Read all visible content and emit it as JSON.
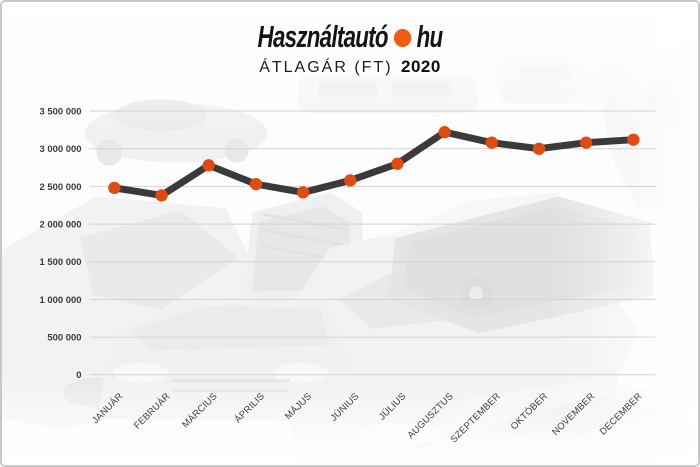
{
  "header": {
    "logo": {
      "part1": "Használtautó",
      "part2": "hu",
      "dot_color": "#f15a10"
    },
    "subtitle": {
      "label": "ÁTLAGÁR (FT)",
      "year": "2020"
    }
  },
  "colors": {
    "frame_border": "#c7c7c7",
    "grid_line": "#d2d2d2",
    "axis_text": "#3a3a3a"
  },
  "chart_data": {
    "type": "line",
    "title": "ÁTLAGÁR (FT) 2020",
    "categories": [
      "JANUÁR",
      "FEBRUÁR",
      "MÁRCIUS",
      "ÁPRILIS",
      "MÁJUS",
      "JÚNIUS",
      "JÚLIUS",
      "AUGUSZTUS",
      "SZEPTEMBER",
      "OKTÓBER",
      "NOVEMBER",
      "DECEMBER"
    ],
    "values": [
      2480000,
      2380000,
      2780000,
      2530000,
      2420000,
      2580000,
      2800000,
      3220000,
      3080000,
      3000000,
      3080000,
      3120000
    ],
    "xlabel": "",
    "ylabel": "",
    "ylim": [
      0,
      3500000
    ],
    "y_tick_step": 500000,
    "y_tick_labels": [
      "0",
      "500 000",
      "1 000 000",
      "1 500 000",
      "2 000 000",
      "2 500 000",
      "3 000 000",
      "3 500 000"
    ],
    "grid": true,
    "legend": "none",
    "line_color": "#3a3a3a",
    "point_color": "#e34a12"
  }
}
